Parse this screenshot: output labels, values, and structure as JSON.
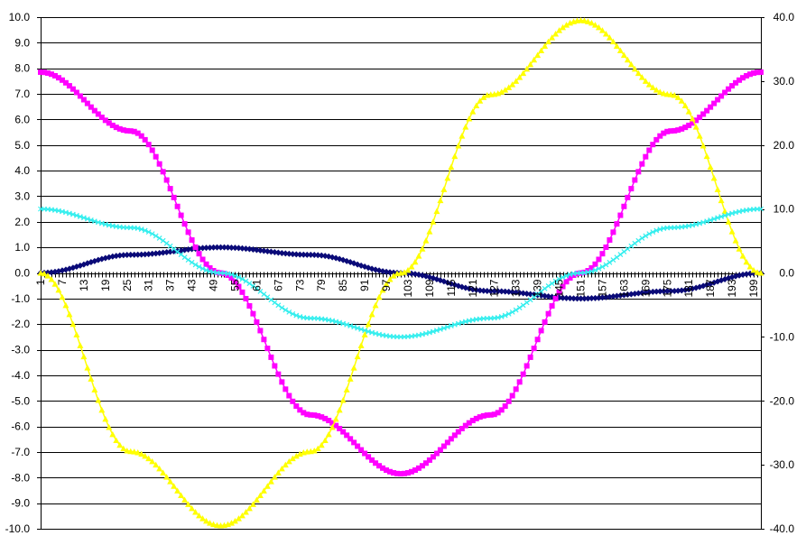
{
  "chart_data": {
    "type": "line",
    "title": "",
    "xlabel": "",
    "ylabel": "",
    "y_left": {
      "min": -10,
      "max": 10,
      "step": 1,
      "tick_labels": [
        "10.0",
        "9.0",
        "8.0",
        "7.0",
        "6.0",
        "5.0",
        "4.0",
        "3.0",
        "2.0",
        "1.0",
        "0.0",
        "-1.0",
        "-2.0",
        "-3.0",
        "-4.0",
        "-5.0",
        "-6.0",
        "-7.0",
        "-8.0",
        "-9.0",
        "-10.0"
      ]
    },
    "y_right": {
      "min": -40,
      "max": 40,
      "step": 10,
      "tick_labels": [
        "40.0",
        "30.0",
        "20.0",
        "10.0",
        "0.0",
        "-10.0",
        "-20.0",
        "-30.0",
        "-40.0"
      ]
    },
    "x": {
      "min": 1,
      "max": 201,
      "count": 201,
      "tick_labels": [
        "1",
        "7",
        "13",
        "19",
        "25",
        "31",
        "37",
        "43",
        "49",
        "55",
        "61",
        "67",
        "73",
        "79",
        "85",
        "91",
        "97",
        "103",
        "109",
        "115",
        "121",
        "127",
        "133",
        "139",
        "145",
        "151",
        "157",
        "163",
        "169",
        "175",
        "181",
        "187",
        "193",
        "199"
      ]
    },
    "grid": "horizontal",
    "legend": "none",
    "series": [
      {
        "color": "#0A0A78",
        "marker": "diamond",
        "axis": "left",
        "points": [
          [
            1,
            0
          ],
          [
            26,
            0.71
          ],
          [
            51,
            1
          ],
          [
            76,
            0.71
          ],
          [
            101,
            0
          ],
          [
            126,
            -0.71
          ],
          [
            151,
            -1
          ],
          [
            176,
            -0.71
          ],
          [
            201,
            0
          ]
        ]
      },
      {
        "color": "#FF00FF",
        "marker": "square",
        "axis": "left",
        "points": [
          [
            1,
            7.85
          ],
          [
            26,
            5.55
          ],
          [
            51,
            0
          ],
          [
            76,
            -5.55
          ],
          [
            101,
            -7.85
          ],
          [
            126,
            -5.55
          ],
          [
            151,
            0
          ],
          [
            176,
            5.55
          ],
          [
            201,
            7.85
          ]
        ]
      },
      {
        "color": "#FFFF00",
        "marker": "triangle",
        "axis": "right",
        "points": [
          [
            1,
            0
          ],
          [
            26,
            -27.9
          ],
          [
            51,
            -39.5
          ],
          [
            76,
            -27.9
          ],
          [
            101,
            0
          ],
          [
            126,
            27.9
          ],
          [
            151,
            39.5
          ],
          [
            176,
            27.9
          ],
          [
            201,
            0
          ]
        ]
      },
      {
        "color": "#33EEEE",
        "marker": "cross",
        "axis": "left",
        "points": [
          [
            1,
            2.5
          ],
          [
            26,
            1.77
          ],
          [
            51,
            0
          ],
          [
            76,
            -1.77
          ],
          [
            101,
            -2.5
          ],
          [
            126,
            -1.77
          ],
          [
            151,
            0
          ],
          [
            176,
            1.77
          ],
          [
            201,
            2.5
          ]
        ]
      }
    ]
  }
}
